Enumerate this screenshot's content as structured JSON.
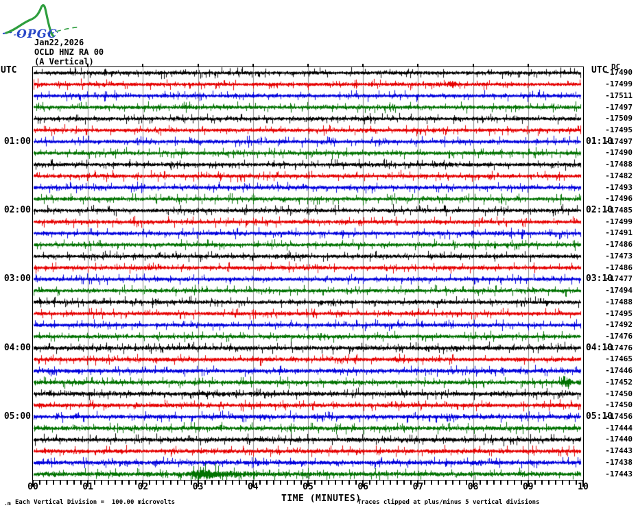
{
  "logo": {
    "text": "OPGC",
    "green": "#2e9e3e",
    "blue": "#2b49c8"
  },
  "header": {
    "date": "Jan22,2026",
    "station": "OCLD HNZ RA 00",
    "component": "(A Vertical)"
  },
  "axes": {
    "left_header": "UTC",
    "right_header": "UTC",
    "dc_header": "DC",
    "xlabel": "TIME (MINUTES)",
    "x_tick_labels": [
      "00",
      "01",
      "02",
      "03",
      "04",
      "05",
      "06",
      "07",
      "08",
      "09",
      "10"
    ]
  },
  "footer": {
    "mark": ".m",
    "scale_note": "Each Vertical Division =  100.00 microvolts",
    "xlabel": "TIME (MINUTES)",
    "clip_note": "Traces clipped at plus/minus 5 vertical divisions"
  },
  "chart_data": {
    "type": "line",
    "title": "OCLD HNZ RA 00 (A Vertical) helicorder, Jan22,2026",
    "xlabel": "TIME (MINUTES)",
    "x_range_minutes": [
      0,
      10
    ],
    "minutes_per_row": 10,
    "start_time_utc": "00:00",
    "x_tick_labels": [
      "00",
      "01",
      "02",
      "03",
      "04",
      "05",
      "06",
      "07",
      "08",
      "09",
      "10"
    ],
    "minor_ticks_per_minute": 8,
    "grid": "vertical gray gridline at each minute",
    "vertical_division_microvolts": 100.0,
    "clip_divisions": 5,
    "palette": {
      "black": "#000000",
      "red": "#e60000",
      "blue": "#0000dd",
      "green": "#007200"
    },
    "color_cycle": [
      "black",
      "red",
      "blue",
      "green"
    ],
    "rows": [
      {
        "left": null,
        "right": null,
        "color": "black",
        "dc": "-17490"
      },
      {
        "left": null,
        "right": null,
        "color": "red",
        "dc": "-17499"
      },
      {
        "left": null,
        "right": null,
        "color": "blue",
        "dc": "-17511"
      },
      {
        "left": null,
        "right": null,
        "color": "green",
        "dc": "-17497"
      },
      {
        "left": null,
        "right": null,
        "color": "black",
        "dc": "-17509"
      },
      {
        "left": null,
        "right": null,
        "color": "red",
        "dc": "-17495"
      },
      {
        "left": "01:00",
        "right": "01:10",
        "color": "blue",
        "dc": "-17497"
      },
      {
        "left": null,
        "right": null,
        "color": "green",
        "dc": "-17490"
      },
      {
        "left": null,
        "right": null,
        "color": "black",
        "dc": "-17488"
      },
      {
        "left": null,
        "right": null,
        "color": "red",
        "dc": "-17482"
      },
      {
        "left": null,
        "right": null,
        "color": "blue",
        "dc": "-17493"
      },
      {
        "left": null,
        "right": null,
        "color": "green",
        "dc": "-17496"
      },
      {
        "left": "02:00",
        "right": "02:10",
        "color": "black",
        "dc": "-17485"
      },
      {
        "left": null,
        "right": null,
        "color": "red",
        "dc": "-17499"
      },
      {
        "left": null,
        "right": null,
        "color": "blue",
        "dc": "-17491"
      },
      {
        "left": null,
        "right": null,
        "color": "green",
        "dc": "-17486"
      },
      {
        "left": null,
        "right": null,
        "color": "black",
        "dc": "-17473"
      },
      {
        "left": null,
        "right": null,
        "color": "red",
        "dc": "-17486"
      },
      {
        "left": "03:00",
        "right": "03:10",
        "color": "blue",
        "dc": "-17477"
      },
      {
        "left": null,
        "right": null,
        "color": "green",
        "dc": "-17494"
      },
      {
        "left": null,
        "right": null,
        "color": "black",
        "dc": "-17488"
      },
      {
        "left": null,
        "right": null,
        "color": "red",
        "dc": "-17495"
      },
      {
        "left": null,
        "right": null,
        "color": "blue",
        "dc": "-17492"
      },
      {
        "left": null,
        "right": null,
        "color": "green",
        "dc": "-17476"
      },
      {
        "left": "04:00",
        "right": "04:10",
        "color": "black",
        "dc": "-17476"
      },
      {
        "left": null,
        "right": null,
        "color": "red",
        "dc": "-17465"
      },
      {
        "left": null,
        "right": null,
        "color": "blue",
        "dc": "-17446"
      },
      {
        "left": null,
        "right": null,
        "color": "green",
        "dc": "-17452"
      },
      {
        "left": null,
        "right": null,
        "color": "black",
        "dc": "-17450"
      },
      {
        "left": null,
        "right": null,
        "color": "red",
        "dc": "-17450"
      },
      {
        "left": "05:00",
        "right": "05:10",
        "color": "blue",
        "dc": "-17456"
      },
      {
        "left": null,
        "right": null,
        "color": "green",
        "dc": "-17444"
      },
      {
        "left": null,
        "right": null,
        "color": "black",
        "dc": "-17440"
      },
      {
        "left": null,
        "right": null,
        "color": "red",
        "dc": "-17443"
      },
      {
        "left": null,
        "right": null,
        "color": "blue",
        "dc": "-17438"
      },
      {
        "left": null,
        "right": null,
        "color": "green",
        "dc": "-17443"
      }
    ],
    "render": {
      "seed": 1337,
      "base_amp": 1.7,
      "bottom_rows_from": 24,
      "bottom_rows_amp": 2.0,
      "last_row_amp": 2.2,
      "grid_color": "#8a8a8a",
      "bursts": [
        {
          "row": 1,
          "minute": 7.62,
          "width": 0.1,
          "gain": 1.4
        },
        {
          "row": 27,
          "minute": 9.7,
          "width": 0.07,
          "gain": 1.8
        },
        {
          "row": 35,
          "minute": 3.08,
          "width": 0.18,
          "gain": 1.8
        },
        {
          "row": 35,
          "minute": 3.6,
          "width": 0.5,
          "gain": 0.7
        }
      ]
    }
  }
}
